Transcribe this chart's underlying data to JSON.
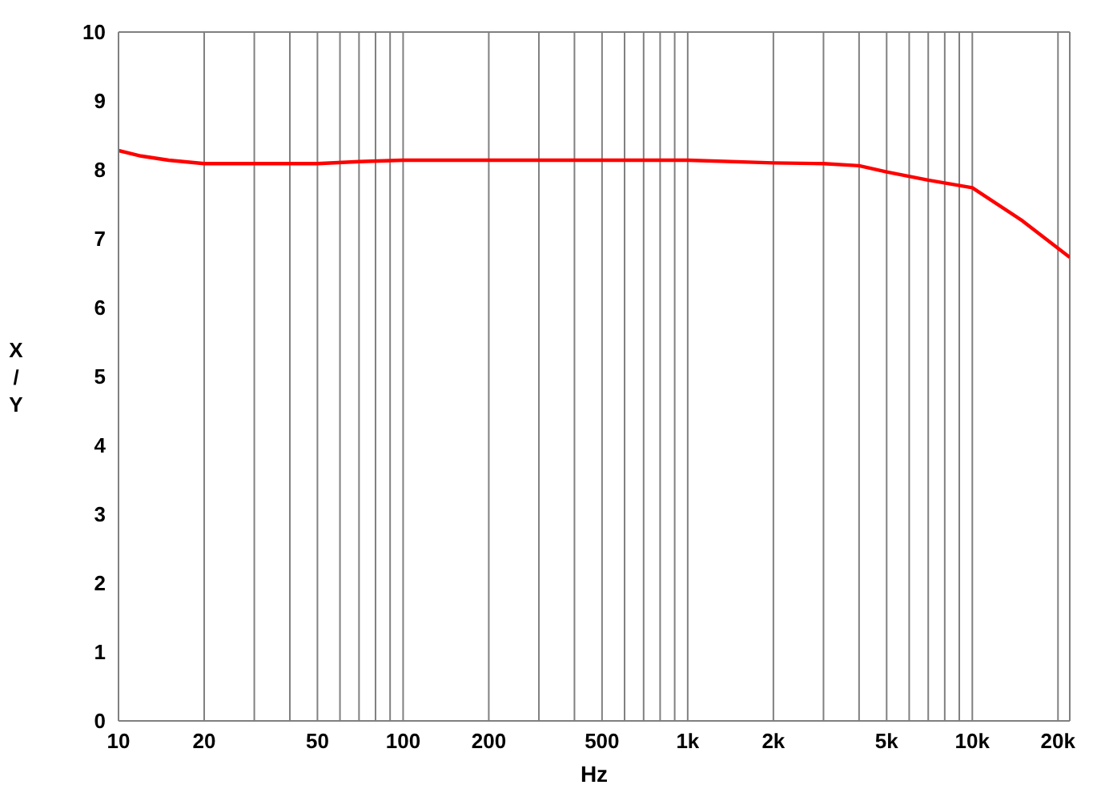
{
  "chart_data": {
    "type": "line",
    "xlabel": "Hz",
    "ylabel": "X/Y",
    "log": "x",
    "grid": true,
    "legend": false,
    "marker": "none",
    "line_style": "solid",
    "x": [
      10,
      12,
      15,
      20,
      30,
      50,
      70,
      100,
      200,
      500,
      1000,
      2000,
      3000,
      4000,
      5000,
      7000,
      10000,
      15000,
      22000
    ],
    "series": [
      {
        "color": "#ff0000",
        "values": [
          8.28,
          8.2,
          8.14,
          8.09,
          8.09,
          8.09,
          8.12,
          8.14,
          8.14,
          8.14,
          8.14,
          8.1,
          8.09,
          8.06,
          7.97,
          7.85,
          7.74,
          7.26,
          6.73
        ]
      }
    ],
    "xlim": [
      10,
      22000
    ],
    "xticks": [
      10,
      20,
      {
        "value": 30,
        "label": null
      },
      {
        "value": 40,
        "label": null
      },
      50,
      {
        "value": 60,
        "label": null
      },
      {
        "value": 70,
        "label": null
      },
      {
        "value": 80,
        "label": null
      },
      {
        "value": 90,
        "label": null
      },
      100,
      200,
      {
        "value": 300,
        "label": null
      },
      {
        "value": 400,
        "label": null
      },
      500,
      {
        "value": 600,
        "label": null
      },
      {
        "value": 700,
        "label": null
      },
      {
        "value": 800,
        "label": null
      },
      {
        "value": 900,
        "label": null
      },
      {
        "value": 1000,
        "label": "1k"
      },
      {
        "value": 2000,
        "label": "2k"
      },
      {
        "value": 3000,
        "label": null
      },
      {
        "value": 4000,
        "label": null
      },
      {
        "value": 5000,
        "label": "5k"
      },
      {
        "value": 6000,
        "label": null
      },
      {
        "value": 7000,
        "label": null
      },
      {
        "value": 8000,
        "label": null
      },
      {
        "value": 9000,
        "label": null
      },
      {
        "value": 10000,
        "label": "10k"
      },
      {
        "value": 20000,
        "label": "20k"
      }
    ],
    "ylim": [
      0,
      10
    ],
    "yticks": [
      0,
      1,
      2,
      3,
      4,
      5,
      6,
      7,
      8,
      9,
      10
    ]
  }
}
